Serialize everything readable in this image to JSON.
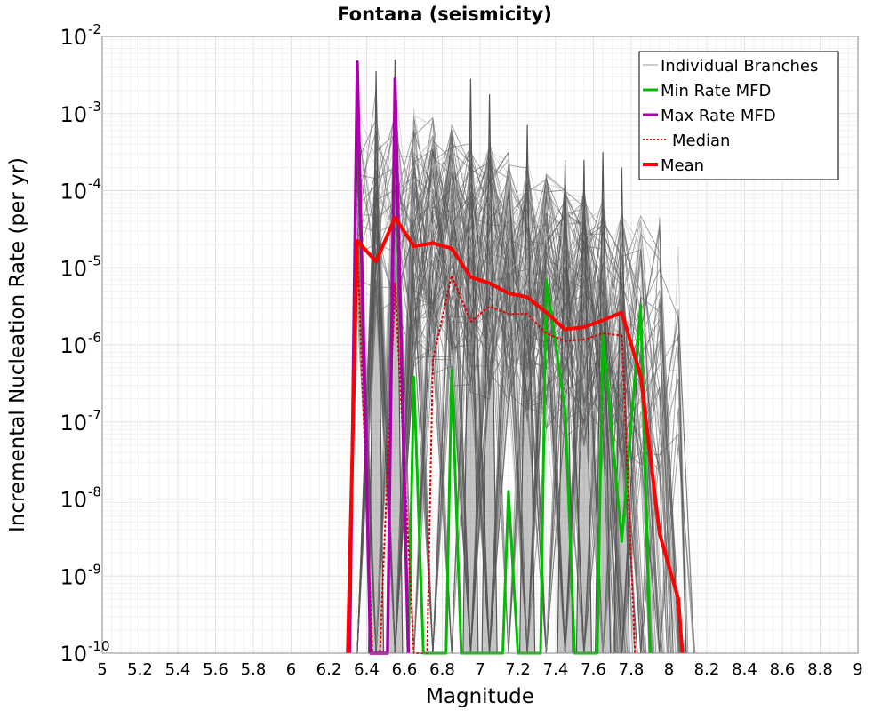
{
  "chart_data": {
    "type": "line",
    "title": "Fontana (seismicity)",
    "xlabel": "Magnitude",
    "ylabel": "Incremental Nucleation Rate (per yr)",
    "xlim": [
      5,
      9
    ],
    "ylim_log10": [
      -10,
      -2
    ],
    "y_scale": "log",
    "x_ticks": [
      "5",
      "5.2",
      "5.4",
      "5.6",
      "5.8",
      "6",
      "6.2",
      "6.4",
      "6.6",
      "6.8",
      "7",
      "7.2",
      "7.4",
      "7.6",
      "7.8",
      "8",
      "8.2",
      "8.4",
      "8.6",
      "8.8",
      "9"
    ],
    "y_ticks": [
      {
        "base": "10",
        "exp": "-10",
        "value": -10
      },
      {
        "base": "10",
        "exp": "-9",
        "value": -9
      },
      {
        "base": "10",
        "exp": "-8",
        "value": -8
      },
      {
        "base": "10",
        "exp": "-7",
        "value": -7
      },
      {
        "base": "10",
        "exp": "-6",
        "value": -6
      },
      {
        "base": "10",
        "exp": "-5",
        "value": -5
      },
      {
        "base": "10",
        "exp": "-4",
        "value": -4
      },
      {
        "base": "10",
        "exp": "-3",
        "value": -3
      },
      {
        "base": "10",
        "exp": "-2",
        "value": -2
      }
    ],
    "legend": {
      "position": "top-right",
      "items": [
        {
          "label": "Individual Branches",
          "color": "#bbbbbb",
          "style": "thin"
        },
        {
          "label": "Min Rate MFD",
          "color": "#00bb00",
          "style": "solid"
        },
        {
          "label": "Max Rate MFD",
          "color": "#aa00aa",
          "style": "solid"
        },
        {
          "label": "Median",
          "color": "#dd0000",
          "style": "dotted"
        },
        {
          "label": "Mean",
          "color": "#ff0000",
          "style": "thick"
        }
      ]
    },
    "series": [
      {
        "name": "Mean",
        "color": "#ff0000",
        "points": [
          [
            6.3,
            -10
          ],
          [
            6.35,
            -4.65
          ],
          [
            6.45,
            -4.92
          ],
          [
            6.55,
            -4.35
          ],
          [
            6.65,
            -4.72
          ],
          [
            6.75,
            -4.68
          ],
          [
            6.85,
            -4.75
          ],
          [
            6.95,
            -5.12
          ],
          [
            7.05,
            -5.2
          ],
          [
            7.15,
            -5.33
          ],
          [
            7.25,
            -5.38
          ],
          [
            7.35,
            -5.58
          ],
          [
            7.45,
            -5.8
          ],
          [
            7.55,
            -5.77
          ],
          [
            7.65,
            -5.68
          ],
          [
            7.75,
            -5.58
          ],
          [
            7.85,
            -6.4
          ],
          [
            7.95,
            -8.45
          ],
          [
            8.05,
            -9.3
          ],
          [
            8.07,
            -10
          ]
        ]
      },
      {
        "name": "Median",
        "color": "#dd0000",
        "points": [
          [
            6.3,
            -10
          ],
          [
            6.35,
            -4.7
          ],
          [
            6.43,
            -10
          ],
          [
            6.47,
            -10
          ],
          [
            6.55,
            -5.2
          ],
          [
            6.65,
            -10
          ],
          [
            6.72,
            -10
          ],
          [
            6.75,
            -6.2
          ],
          [
            6.85,
            -5.1
          ],
          [
            6.95,
            -5.7
          ],
          [
            7.05,
            -5.5
          ],
          [
            7.15,
            -5.6
          ],
          [
            7.25,
            -5.6
          ],
          [
            7.35,
            -5.85
          ],
          [
            7.45,
            -5.95
          ],
          [
            7.55,
            -5.93
          ],
          [
            7.65,
            -5.85
          ],
          [
            7.75,
            -5.88
          ],
          [
            7.82,
            -10
          ]
        ]
      },
      {
        "name": "Min Rate MFD",
        "color": "#00bb00",
        "points": [
          [
            6.62,
            -10
          ],
          [
            6.65,
            -6.42
          ],
          [
            6.7,
            -10
          ],
          [
            6.82,
            -10
          ],
          [
            6.85,
            -6.33
          ],
          [
            6.9,
            -10
          ],
          [
            7.12,
            -10
          ],
          [
            7.15,
            -7.9
          ],
          [
            7.2,
            -10
          ],
          [
            7.32,
            -10
          ],
          [
            7.35,
            -5.15
          ],
          [
            7.45,
            -6.85
          ],
          [
            7.5,
            -10
          ],
          [
            7.62,
            -10
          ],
          [
            7.65,
            -5.85
          ],
          [
            7.75,
            -8.55
          ],
          [
            7.85,
            -5.48
          ],
          [
            7.9,
            -10
          ]
        ]
      },
      {
        "name": "Max Rate MFD",
        "color": "#aa00aa",
        "points": [
          [
            6.31,
            -10
          ],
          [
            6.35,
            -2.33
          ],
          [
            6.42,
            -10
          ],
          [
            6.51,
            -10
          ],
          [
            6.55,
            -2.55
          ],
          [
            6.62,
            -10
          ]
        ]
      }
    ]
  }
}
